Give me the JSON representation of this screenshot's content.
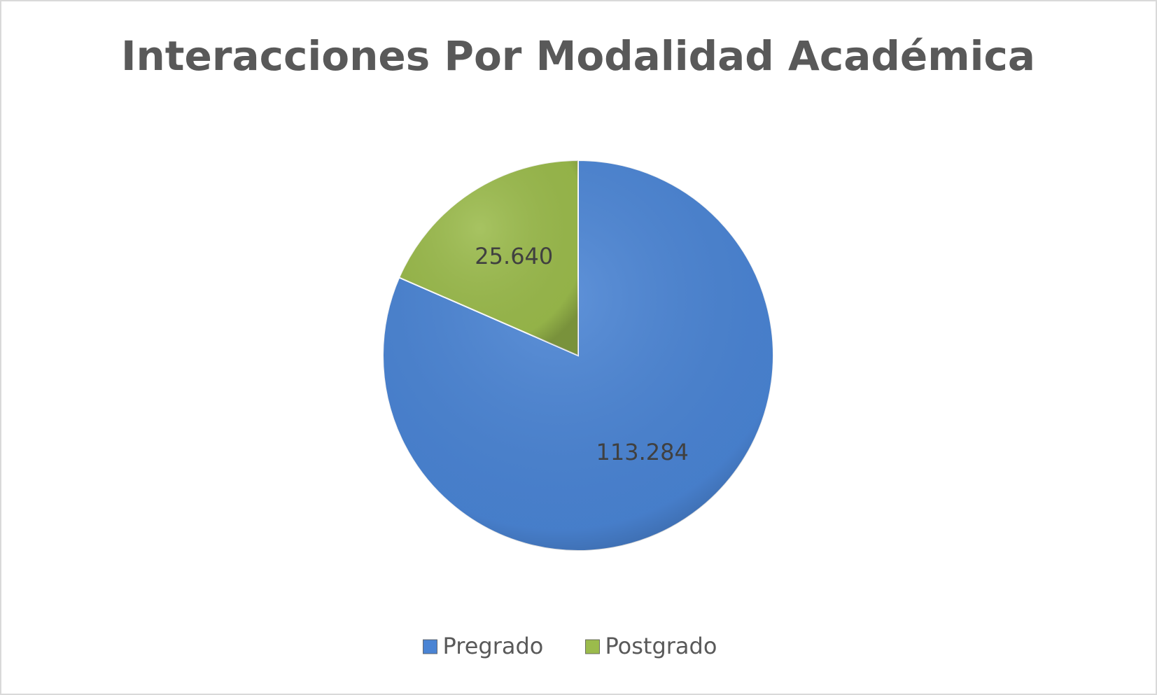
{
  "chart_data": {
    "type": "pie",
    "title": "Interacciones Por Modalidad Académica",
    "categories": [
      "Pregrado",
      "Postgrado"
    ],
    "values": [
      113284,
      25640
    ],
    "value_labels": [
      "113.284",
      "25.640"
    ],
    "colors": [
      "#4a84d4",
      "#9bbb4c"
    ],
    "legend": "bottom"
  }
}
